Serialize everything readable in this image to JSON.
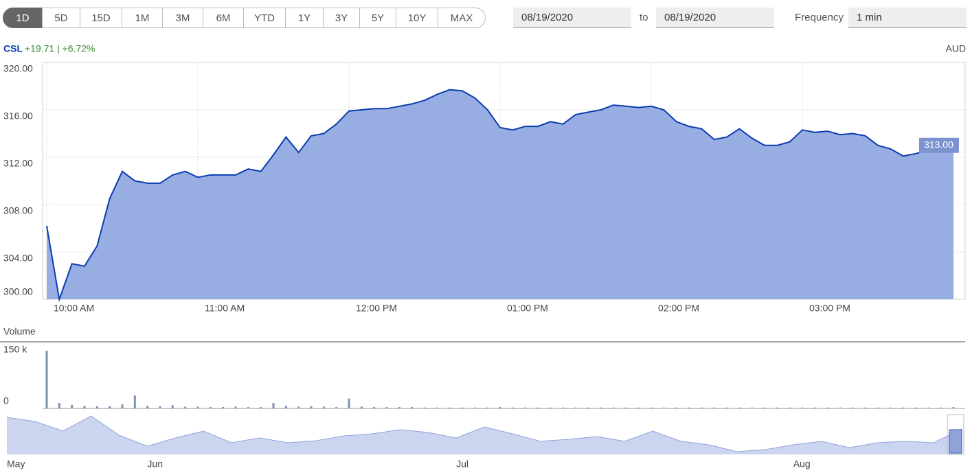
{
  "toolbar": {
    "ranges": [
      "1D",
      "5D",
      "15D",
      "1M",
      "3M",
      "6M",
      "YTD",
      "1Y",
      "3Y",
      "5Y",
      "10Y",
      "MAX"
    ],
    "selected_index": 0,
    "from_date": "08/19/2020",
    "to_label": "to",
    "to_date": "08/19/2020",
    "frequency_label": "Frequency",
    "frequency": "1 min"
  },
  "chart_data": [
    {
      "type": "area",
      "symbol": "CSL",
      "change": "+19.71 | +6.72%",
      "currency": "AUD",
      "color": "#0a3bb0",
      "fill": "#98aee3",
      "grid": true,
      "categories": [
        "10:00 AM",
        null,
        null,
        null,
        null,
        null,
        null,
        null,
        null,
        null,
        null,
        null,
        "11:00 AM",
        null,
        null,
        null,
        null,
        null,
        null,
        null,
        null,
        null,
        null,
        null,
        "12:00 PM",
        null,
        null,
        null,
        null,
        null,
        null,
        null,
        null,
        null,
        null,
        null,
        "01:00 PM",
        null,
        null,
        null,
        null,
        null,
        null,
        null,
        null,
        null,
        null,
        null,
        "02:00 PM",
        null,
        null,
        null,
        null,
        null,
        null,
        null,
        null,
        null,
        null,
        null,
        "03:00 PM",
        null,
        null,
        null,
        null,
        null,
        null,
        null,
        null,
        null,
        null,
        null,
        null
      ],
      "values": [
        306.2,
        300.0,
        303.0,
        302.8,
        304.5,
        308.5,
        310.8,
        310.0,
        309.8,
        309.8,
        310.5,
        310.8,
        310.3,
        310.5,
        310.5,
        310.5,
        311.0,
        310.8,
        312.2,
        313.7,
        312.4,
        313.8,
        314.0,
        314.8,
        315.9,
        316.0,
        316.1,
        316.1,
        316.3,
        316.5,
        316.8,
        317.3,
        317.7,
        317.6,
        317.0,
        316.0,
        314.5,
        314.3,
        314.6,
        314.6,
        315.0,
        314.8,
        315.6,
        315.8,
        316.0,
        316.4,
        316.3,
        316.2,
        316.3,
        316.0,
        315.0,
        314.6,
        314.4,
        313.5,
        313.7,
        314.4,
        313.6,
        313.0,
        313.0,
        313.3,
        314.3,
        314.1,
        314.2,
        313.9,
        314.0,
        313.8,
        313.0,
        312.7,
        312.1,
        312.3,
        312.6,
        312.8,
        313.0
      ],
      "last_value": {
        "value": 313,
        "label": "313.00"
      },
      "ylim": [
        300,
        320
      ],
      "yticks": [
        {
          "value": 300,
          "label": "300.00"
        },
        {
          "value": 304,
          "label": "304.00"
        },
        {
          "value": 308,
          "label": "308.00"
        },
        {
          "value": 312,
          "label": "312.00"
        },
        {
          "value": 316,
          "label": "316.00"
        },
        {
          "value": 320,
          "label": "320.00"
        }
      ]
    },
    {
      "type": "bar",
      "title": "Volume",
      "color": "#7f8fb0",
      "values": [
        130000,
        12000,
        8000,
        6000,
        5000,
        5000,
        9000,
        29000,
        6000,
        5000,
        7000,
        4000,
        4000,
        3000,
        3000,
        4000,
        3000,
        3000,
        12000,
        6000,
        4000,
        5000,
        4000,
        3000,
        22000,
        4000,
        3000,
        3000,
        3000,
        3000,
        2000,
        2000,
        2000,
        2000,
        2000,
        2000,
        3000,
        2000,
        2000,
        2000,
        2000,
        2000,
        2000,
        2000,
        2000,
        2000,
        2000,
        2000,
        2000,
        2000,
        2000,
        2000,
        2000,
        2000,
        2000,
        2000,
        2000,
        2000,
        2000,
        2000,
        2000,
        2000,
        2000,
        2000,
        2000,
        2000,
        2000,
        2000,
        2000,
        2000,
        2000,
        2000,
        3000
      ],
      "ylim": [
        0,
        150000
      ],
      "yticks": [
        0,
        {
          "value": 150000,
          "label": "150 k"
        }
      ]
    },
    {
      "type": "navigator",
      "color": "#8fa3d9",
      "fill": "#ccd5f0",
      "categories": [
        "May",
        null,
        null,
        null,
        null,
        "Jun",
        null,
        null,
        null,
        null,
        null,
        null,
        null,
        null,
        null,
        null,
        "Jul",
        null,
        null,
        null,
        null,
        null,
        null,
        null,
        null,
        null,
        null,
        null,
        "Aug",
        null,
        null,
        null,
        null,
        null,
        null
      ],
      "values": [
        335.2,
        327.9,
        311.0,
        337.6,
        303.8,
        284.5,
        299.0,
        311.0,
        290.5,
        299.0,
        290.5,
        294.0,
        302.6,
        306.2,
        313.5,
        308.6,
        299.0,
        318.3,
        306.2,
        293.0,
        296.6,
        301.4,
        293.0,
        311.0,
        293.0,
        286.9,
        274.8,
        278.4,
        286.9,
        293.0,
        282.0,
        290.5,
        293.0,
        290.5,
        314.7
      ],
      "ylim": [
        270,
        340
      ]
    }
  ]
}
